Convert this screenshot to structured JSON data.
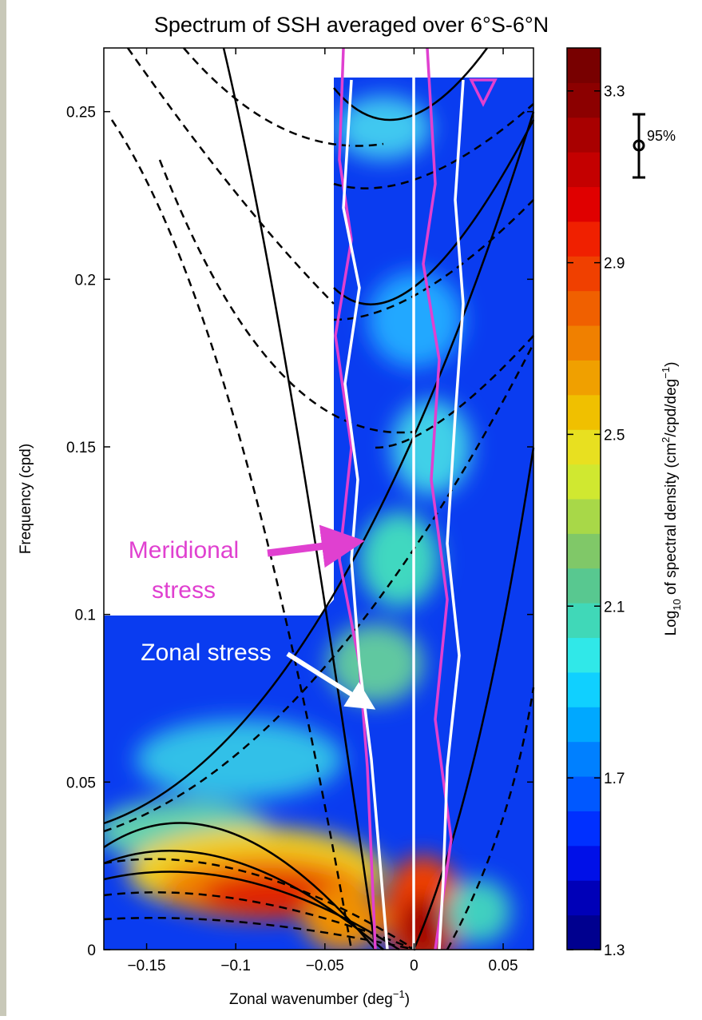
{
  "chart_data": {
    "type": "contour",
    "title": "Spectrum of SSH averaged over 6°S-6°N",
    "x_label": [
      "Zonal wavenumber (deg",
      "−1",
      ")"
    ],
    "y_label": "Frequency (cpd)",
    "xlim": [
      -0.174,
      0.067
    ],
    "ylim": [
      0,
      0.269
    ],
    "xticks": [
      {
        "value": -0.15,
        "label": "−0.15"
      },
      {
        "value": -0.1,
        "label": "−0.1"
      },
      {
        "value": -0.05,
        "label": "−0.05"
      },
      0,
      0.05
    ],
    "yticks": [
      0,
      0.05,
      0.1,
      0.15,
      0.2,
      0.25
    ],
    "colorbar": {
      "label": [
        "Log",
        "10",
        " of spectral density (cm",
        "2",
        "/cpd/deg",
        "−1",
        ")"
      ],
      "clim": [
        1.3,
        3.4
      ],
      "ticks": [
        1.3,
        1.7,
        2.1,
        2.5,
        2.9,
        3.3
      ],
      "colormap": [
        "#00008f",
        "#0000b8",
        "#0010e8",
        "#0030ff",
        "#0058ff",
        "#0080ff",
        "#00a8ff",
        "#10d0ff",
        "#30e8e8",
        "#40d8b8",
        "#58c890",
        "#80c868",
        "#a8d848",
        "#d0e830",
        "#e8e020",
        "#f0c000",
        "#f0a000",
        "#f08000",
        "#f06000",
        "#f04000",
        "#f02000",
        "#e00000",
        "#c40000",
        "#a80000",
        "#8c0000",
        "#780000"
      ]
    },
    "annotations": {
      "meridional": [
        "Meridional",
        "stress"
      ],
      "zonal": "Zonal stress",
      "confidence": "95%"
    }
  }
}
